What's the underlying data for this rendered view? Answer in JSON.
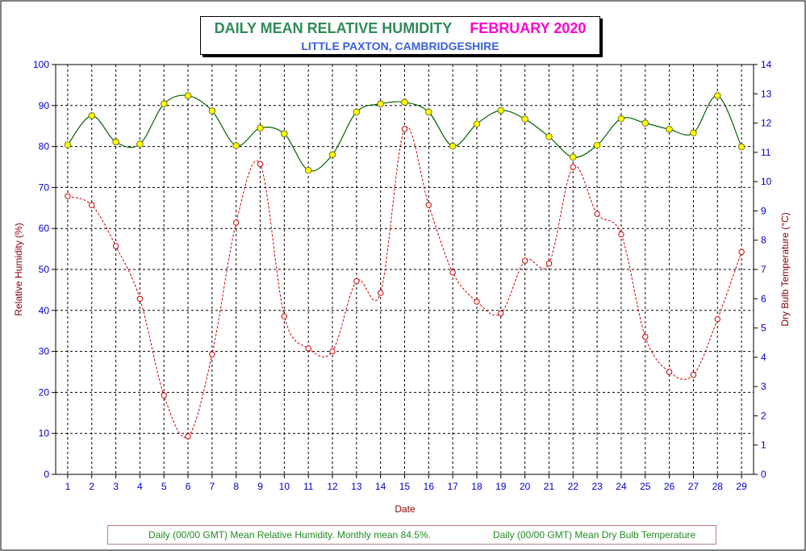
{
  "title": {
    "main": "DAILY MEAN RELATIVE HUMIDITY",
    "month": "FEBRUARY 2020",
    "location": "LITTLE PAXTON, CAMBRIDGESHIRE"
  },
  "colors": {
    "humidity_line": "#006400",
    "humidity_marker": "#ffff00",
    "temperature_line": "#cc0000",
    "left_axis_label": "#8b0000",
    "tick_label": "#0000cc",
    "title_green": "#2e8b57",
    "title_magenta": "#ff00cc",
    "subtitle_blue": "#3a5fdc"
  },
  "chart_data": {
    "type": "line",
    "xlabel": "Date",
    "ylabel_left": "Relative Humidity (%)",
    "ylabel_right": "Dry Bulb Temperature (°C)",
    "ylim_left": [
      0,
      100
    ],
    "ylim_right": [
      0,
      14
    ],
    "yticks_left": [
      "0",
      "10",
      "20",
      "30",
      "40",
      "50",
      "60",
      "70",
      "80",
      "90",
      "100"
    ],
    "yticks_right": [
      "0",
      "1",
      "2",
      "3",
      "4",
      "5",
      "6",
      "7",
      "8",
      "9",
      "10",
      "11",
      "12",
      "13",
      "14"
    ],
    "x": [
      "1",
      "2",
      "3",
      "4",
      "5",
      "6",
      "7",
      "8",
      "9",
      "10",
      "11",
      "12",
      "13",
      "14",
      "15",
      "16",
      "17",
      "18",
      "19",
      "20",
      "21",
      "22",
      "23",
      "24",
      "25",
      "26",
      "27",
      "28",
      "29"
    ],
    "grid": true,
    "series": [
      {
        "name": "Daily (00/00 GMT) Mean Relative Humidity. Monthly mean 84.5%.",
        "axis": "left",
        "style": "solid-yellow-dot",
        "values": [
          80.4,
          87.5,
          81.1,
          80.6,
          90.4,
          92.4,
          88.7,
          80.2,
          84.5,
          83.1,
          74.2,
          78.0,
          88.4,
          90.4,
          90.8,
          88.4,
          80.1,
          85.5,
          88.8,
          86.7,
          82.4,
          77.4,
          80.3,
          86.8,
          85.7,
          84.2,
          83.3,
          92.4,
          79.9
        ]
      },
      {
        "name": "Daily (00/00 GMT) Mean Dry Bulb Temperature",
        "axis": "right",
        "style": "dashed-red-circle",
        "values": [
          9.5,
          9.2,
          7.8,
          6.0,
          2.7,
          1.3,
          4.1,
          8.6,
          10.6,
          5.4,
          4.3,
          4.2,
          6.6,
          6.2,
          11.8,
          9.2,
          6.9,
          5.9,
          5.5,
          7.3,
          7.2,
          10.5,
          8.9,
          8.2,
          4.7,
          3.5,
          3.4,
          5.3,
          7.6
        ]
      }
    ],
    "legend": "bottom"
  }
}
